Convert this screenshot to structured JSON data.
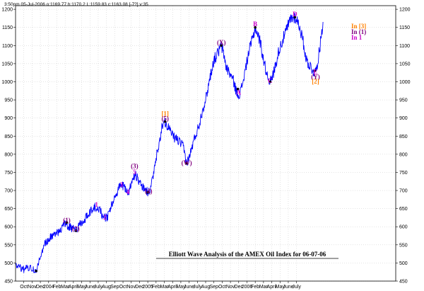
{
  "chart_data": {
    "type": "line",
    "header": "3:50pm 05-Jul-2006  o:1169.77 h:1170.2 L:1159.83 c:1163.08 [-7?] v:35",
    "title": "Elliott Wave Analysis of the AMEX Oil Index for 06-07-06",
    "ylim": [
      450,
      1210
    ],
    "yticks": [
      450,
      500,
      550,
      600,
      650,
      700,
      750,
      800,
      850,
      900,
      950,
      1000,
      1050,
      1100,
      1150,
      1200
    ],
    "xlim": [
      0,
      46
    ],
    "xticks": [
      {
        "x": 1,
        "label": "Oct"
      },
      {
        "x": 2,
        "label": "Nov"
      },
      {
        "x": 3,
        "label": "Dec"
      },
      {
        "x": 4,
        "label": "2004"
      },
      {
        "x": 5,
        "label": "Feb"
      },
      {
        "x": 6,
        "label": "Mar"
      },
      {
        "x": 7,
        "label": "April"
      },
      {
        "x": 8,
        "label": "May"
      },
      {
        "x": 9,
        "label": "June"
      },
      {
        "x": 10,
        "label": "July"
      },
      {
        "x": 11,
        "label": "Aug"
      },
      {
        "x": 12,
        "label": "Sep"
      },
      {
        "x": 13,
        "label": "Oct"
      },
      {
        "x": 14,
        "label": "Nov"
      },
      {
        "x": 15,
        "label": "Dec"
      },
      {
        "x": 16,
        "label": "2005"
      },
      {
        "x": 17,
        "label": "Feb"
      },
      {
        "x": 18,
        "label": "Mar"
      },
      {
        "x": 19,
        "label": "April"
      },
      {
        "x": 20,
        "label": "May"
      },
      {
        "x": 21,
        "label": "June"
      },
      {
        "x": 22,
        "label": "July"
      },
      {
        "x": 23,
        "label": "Aug"
      },
      {
        "x": 24,
        "label": "Sep"
      },
      {
        "x": 25,
        "label": "Oct"
      },
      {
        "x": 26,
        "label": "Nov"
      },
      {
        "x": 27,
        "label": "Dec"
      },
      {
        "x": 28,
        "label": "2006"
      },
      {
        "x": 29,
        "label": "Feb"
      },
      {
        "x": 30,
        "label": "Mar"
      },
      {
        "x": 31,
        "label": "April"
      },
      {
        "x": 32,
        "label": "May"
      },
      {
        "x": 33,
        "label": "June"
      },
      {
        "x": 34,
        "label": "July"
      }
    ],
    "pivots": [
      [
        0,
        490
      ],
      [
        1,
        482
      ],
      [
        1.5,
        487
      ],
      [
        2.1,
        485
      ],
      [
        2.5,
        478
      ],
      [
        3,
        520
      ],
      [
        3.5,
        552
      ],
      [
        4.3,
        573
      ],
      [
        5.2,
        585
      ],
      [
        5.6,
        597
      ],
      [
        6,
        610
      ],
      [
        6.6,
        598
      ],
      [
        7.3,
        590
      ],
      [
        7.8,
        608
      ],
      [
        8.3,
        614
      ],
      [
        8.6,
        632
      ],
      [
        9,
        640
      ],
      [
        9.6,
        655
      ],
      [
        10.2,
        648
      ],
      [
        10.6,
        625
      ],
      [
        11.1,
        625
      ],
      [
        11.6,
        660
      ],
      [
        12,
        685
      ],
      [
        12.6,
        710
      ],
      [
        13,
        712
      ],
      [
        13.3,
        705
      ],
      [
        13.6,
        690
      ],
      [
        14,
        720
      ],
      [
        14.5,
        745
      ],
      [
        14.9,
        728
      ],
      [
        15.5,
        708
      ],
      [
        16,
        695
      ],
      [
        16.3,
        698
      ],
      [
        16.7,
        745
      ],
      [
        17,
        790
      ],
      [
        17.5,
        840
      ],
      [
        17.7,
        880
      ],
      [
        18.1,
        890
      ],
      [
        18.5,
        875
      ],
      [
        19,
        850
      ],
      [
        19.6,
        840
      ],
      [
        20.3,
        820
      ],
      [
        20.7,
        775
      ],
      [
        21,
        790
      ],
      [
        21.6,
        840
      ],
      [
        22.2,
        880
      ],
      [
        22.6,
        920
      ],
      [
        23.1,
        960
      ],
      [
        23.5,
        1010
      ],
      [
        24,
        1060
      ],
      [
        24.5,
        1080
      ],
      [
        24.9,
        1100
      ],
      [
        25.2,
        1075
      ],
      [
        25.5,
        1040
      ],
      [
        26,
        1020
      ],
      [
        26.4,
        1000
      ],
      [
        26.8,
        965
      ],
      [
        27.2,
        970
      ],
      [
        27.7,
        1020
      ],
      [
        28.2,
        1080
      ],
      [
        28.7,
        1120
      ],
      [
        29,
        1150
      ],
      [
        29.6,
        1110
      ],
      [
        30.1,
        1050
      ],
      [
        30.5,
        1015
      ],
      [
        30.9,
        1000
      ],
      [
        31.4,
        1040
      ],
      [
        31.9,
        1090
      ],
      [
        32.4,
        1120
      ],
      [
        32.9,
        1150
      ],
      [
        33.3,
        1175
      ],
      [
        33.9,
        1178
      ],
      [
        34.4,
        1150
      ],
      [
        34.8,
        1110
      ],
      [
        35.2,
        1060
      ],
      [
        35.6,
        1045
      ],
      [
        36,
        1030
      ],
      [
        36.3,
        1025
      ],
      [
        36.5,
        1050
      ],
      [
        36.8,
        1090
      ],
      [
        37,
        1130
      ],
      [
        37.2,
        1165
      ]
    ],
    "wave_labels": [
      {
        "text": "(1)",
        "x": 6.2,
        "y": 612,
        "color": "#800080"
      },
      {
        "text": "(2)",
        "x": 7.3,
        "y": 589,
        "color": "#800080"
      },
      {
        "text": "1",
        "x": 9.8,
        "y": 655,
        "color": "#cc00cc"
      },
      {
        "text": "2",
        "x": 10.8,
        "y": 620,
        "color": "#cc00cc"
      },
      {
        "text": "3",
        "x": 12.8,
        "y": 710,
        "color": "#cc00cc"
      },
      {
        "text": "4",
        "x": 13.6,
        "y": 690,
        "color": "#cc00cc"
      },
      {
        "text": "5",
        "x": 14.4,
        "y": 745,
        "color": "#cc00cc"
      },
      {
        "text": "(3)",
        "x": 14.4,
        "y": 762,
        "color": "#800080"
      },
      {
        "text": "(4)",
        "x": 16.1,
        "y": 692,
        "color": "#800080"
      },
      {
        "text": "[1]",
        "x": 18.1,
        "y": 906,
        "color": "#ff8000"
      },
      {
        "text": "(5)",
        "x": 18.1,
        "y": 893,
        "color": "#800080"
      },
      {
        "text": "(W)",
        "x": 20.7,
        "y": 770,
        "color": "#800080"
      },
      {
        "text": "(X)",
        "x": 24.9,
        "y": 1103,
        "color": "#800080"
      },
      {
        "text": "A",
        "x": 27,
        "y": 965,
        "color": "#cc00cc"
      },
      {
        "text": "B",
        "x": 29,
        "y": 1153,
        "color": "#cc00cc"
      },
      {
        "text": "C",
        "x": 30.8,
        "y": 997,
        "color": "#cc00cc"
      },
      {
        "text": "D",
        "x": 33.8,
        "y": 1181,
        "color": "#cc00cc"
      },
      {
        "text": "E",
        "x": 36.3,
        "y": 1021,
        "color": "#cc00cc"
      },
      {
        "text": "(Y)",
        "x": 36.3,
        "y": 1008,
        "color": "#800080"
      },
      {
        "text": "[2]",
        "x": 36.3,
        "y": 995,
        "color": "#ff8000"
      }
    ],
    "legend": [
      {
        "text": "In [3]",
        "color": "#ff8000"
      },
      {
        "text": "In (1)",
        "color": "#800080"
      },
      {
        "text": "In 1",
        "color": "#cc00cc"
      }
    ]
  }
}
